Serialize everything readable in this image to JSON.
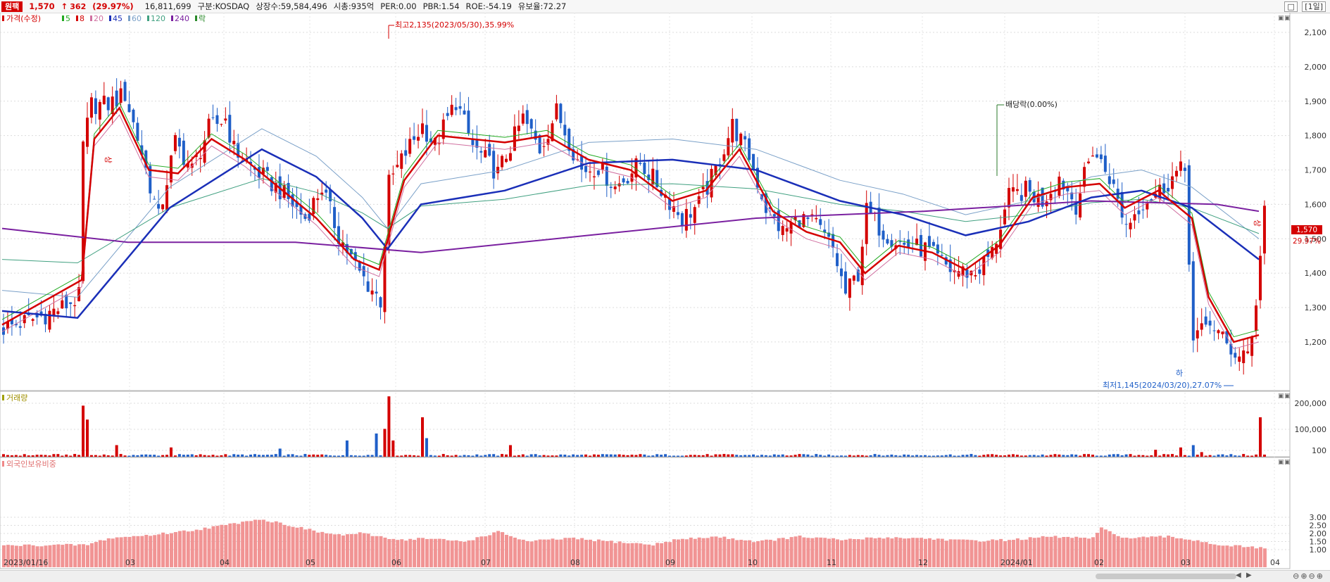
{
  "header": {
    "name": "원팩",
    "price": "1,570",
    "arrow": "↑",
    "change": "362",
    "change_pct": "(29.97%)",
    "volume": "16,811,699",
    "market": "구분:KOSDAQ",
    "listed": "상장수:59,584,496",
    "mcap": "시총:935억",
    "per": "PER:0.00",
    "pbr": "PBR:1.54",
    "roe": "ROE:-54.19",
    "float": "유보율:72.27",
    "period": "[1일]",
    "win_btn": "□"
  },
  "legend": {
    "price": "가격(수정)",
    "ma": [
      {
        "label": "5",
        "color": "#22aa22"
      },
      {
        "label": "8",
        "color": "#d40000"
      },
      {
        "label": "20",
        "color": "#d070a0"
      },
      {
        "label": "45",
        "color": "#1a2fb8"
      },
      {
        "label": "60",
        "color": "#7aa0c8"
      },
      {
        "label": "120",
        "color": "#40a080"
      },
      {
        "label": "240",
        "color": "#7a20a0"
      }
    ],
    "div": "락"
  },
  "annotations": {
    "high": "최고2,135(2023/05/30),35.99%",
    "low": "최저1,145(2024/03/20),27.07%",
    "dividend": "배당락(0.00%)",
    "up_mark": "상",
    "down_mark": "하",
    "last_price_tag": "1,570",
    "last_pct_tag": "29.97%"
  },
  "colors": {
    "up": "#d40000",
    "down": "#1f5fc8",
    "foreign": "#f08888"
  },
  "chart_data": [
    {
      "type": "candlestick",
      "title": "가격(수정)",
      "y_ticks": [
        1200,
        1300,
        1400,
        1500,
        1600,
        1700,
        1800,
        1900,
        2000,
        2100
      ],
      "ylim": [
        1120,
        2200
      ],
      "x_tick_labels": [
        "2023/01/16",
        "03",
        "04",
        "05",
        "06",
        "07",
        "08",
        "09",
        "10",
        "11",
        "12",
        "2024/01",
        "02",
        "03",
        "04"
      ],
      "summary_path_close": [
        [
          0,
          1240
        ],
        [
          8,
          1270
        ],
        [
          14,
          1300
        ],
        [
          18,
          1330
        ],
        [
          19,
          1770
        ],
        [
          21,
          1890
        ],
        [
          25,
          1890
        ],
        [
          29,
          1920
        ],
        [
          33,
          1750
        ],
        [
          37,
          1560
        ],
        [
          41,
          1780
        ],
        [
          45,
          1700
        ],
        [
          49,
          1820
        ],
        [
          53,
          1850
        ],
        [
          55,
          1760
        ],
        [
          60,
          1700
        ],
        [
          66,
          1640
        ],
        [
          72,
          1560
        ],
        [
          76,
          1650
        ],
        [
          80,
          1510
        ],
        [
          85,
          1400
        ],
        [
          90,
          1320
        ],
        [
          92,
          1660
        ],
        [
          96,
          1750
        ],
        [
          100,
          1830
        ],
        [
          103,
          1770
        ],
        [
          108,
          1900
        ],
        [
          112,
          1770
        ],
        [
          118,
          1690
        ],
        [
          124,
          1850
        ],
        [
          128,
          1760
        ],
        [
          132,
          1870
        ],
        [
          138,
          1700
        ],
        [
          142,
          1710
        ],
        [
          146,
          1650
        ],
        [
          152,
          1720
        ],
        [
          156,
          1660
        ],
        [
          162,
          1560
        ],
        [
          166,
          1600
        ],
        [
          170,
          1700
        ],
        [
          174,
          1830
        ],
        [
          178,
          1740
        ],
        [
          182,
          1590
        ],
        [
          186,
          1520
        ],
        [
          190,
          1560
        ],
        [
          194,
          1540
        ],
        [
          198,
          1470
        ],
        [
          201,
          1340
        ],
        [
          204,
          1400
        ],
        [
          206,
          1580
        ],
        [
          210,
          1520
        ],
        [
          215,
          1480
        ],
        [
          220,
          1470
        ],
        [
          226,
          1410
        ],
        [
          232,
          1400
        ],
        [
          236,
          1460
        ],
        [
          240,
          1620
        ],
        [
          244,
          1640
        ],
        [
          248,
          1610
        ],
        [
          252,
          1680
        ],
        [
          256,
          1600
        ],
        [
          260,
          1760
        ],
        [
          264,
          1680
        ],
        [
          268,
          1540
        ],
        [
          272,
          1610
        ],
        [
          276,
          1640
        ],
        [
          280,
          1690
        ],
        [
          282,
          1700
        ],
        [
          284,
          1200
        ],
        [
          288,
          1260
        ],
        [
          292,
          1190
        ],
        [
          295,
          1160
        ],
        [
          298,
          1200
        ],
        [
          301,
          1570
        ]
      ],
      "ma_8_path": [
        [
          0,
          1250
        ],
        [
          19,
          1380
        ],
        [
          22,
          1790
        ],
        [
          28,
          1880
        ],
        [
          35,
          1700
        ],
        [
          42,
          1690
        ],
        [
          50,
          1790
        ],
        [
          58,
          1730
        ],
        [
          66,
          1650
        ],
        [
          75,
          1560
        ],
        [
          84,
          1440
        ],
        [
          90,
          1410
        ],
        [
          96,
          1670
        ],
        [
          104,
          1800
        ],
        [
          112,
          1790
        ],
        [
          120,
          1780
        ],
        [
          130,
          1800
        ],
        [
          140,
          1730
        ],
        [
          150,
          1700
        ],
        [
          160,
          1610
        ],
        [
          168,
          1640
        ],
        [
          176,
          1760
        ],
        [
          184,
          1580
        ],
        [
          192,
          1520
        ],
        [
          200,
          1490
        ],
        [
          206,
          1400
        ],
        [
          214,
          1480
        ],
        [
          222,
          1460
        ],
        [
          230,
          1410
        ],
        [
          238,
          1480
        ],
        [
          246,
          1620
        ],
        [
          254,
          1650
        ],
        [
          262,
          1660
        ],
        [
          268,
          1590
        ],
        [
          276,
          1640
        ],
        [
          284,
          1560
        ],
        [
          288,
          1330
        ],
        [
          294,
          1200
        ],
        [
          300,
          1220
        ]
      ],
      "ma_45_path": [
        [
          0,
          1290
        ],
        [
          18,
          1270
        ],
        [
          40,
          1590
        ],
        [
          62,
          1760
        ],
        [
          75,
          1680
        ],
        [
          86,
          1560
        ],
        [
          92,
          1470
        ],
        [
          100,
          1600
        ],
        [
          120,
          1640
        ],
        [
          140,
          1720
        ],
        [
          160,
          1730
        ],
        [
          180,
          1700
        ],
        [
          200,
          1610
        ],
        [
          215,
          1570
        ],
        [
          230,
          1510
        ],
        [
          245,
          1550
        ],
        [
          260,
          1620
        ],
        [
          272,
          1640
        ],
        [
          284,
          1590
        ],
        [
          300,
          1440
        ]
      ],
      "ma_240_path": [
        [
          0,
          1530
        ],
        [
          30,
          1490
        ],
        [
          70,
          1490
        ],
        [
          100,
          1460
        ],
        [
          140,
          1510
        ],
        [
          180,
          1560
        ],
        [
          220,
          1580
        ],
        [
          260,
          1610
        ],
        [
          290,
          1600
        ],
        [
          300,
          1580
        ]
      ]
    },
    {
      "type": "bar",
      "title": "거래량",
      "y_ticks": [
        "100",
        "100,000",
        "200,000"
      ],
      "series": [
        {
          "name": "거래량"
        }
      ],
      "spikes": [
        [
          19,
          220000
        ],
        [
          20,
          160000
        ],
        [
          27,
          50000
        ],
        [
          40,
          40000
        ],
        [
          66,
          35000
        ],
        [
          82,
          70000
        ],
        [
          91,
          120000
        ],
        [
          93,
          70000
        ],
        [
          89,
          100000
        ],
        [
          92,
          260000
        ],
        [
          101,
          80000
        ],
        [
          100,
          170000
        ],
        [
          121,
          50000
        ],
        [
          284,
          50000
        ],
        [
          300,
          170000
        ],
        [
          275,
          30000
        ],
        [
          281,
          40000
        ],
        [
          286,
          20000
        ]
      ]
    },
    {
      "type": "bar",
      "title": "외국인보유비중",
      "y_ticks": [
        "1.00",
        "1.50",
        "2.00",
        "2.50",
        "3.00"
      ],
      "series": [
        {
          "name": "외국인보유비중"
        }
      ],
      "path": [
        [
          0,
          1.25
        ],
        [
          20,
          1.3
        ],
        [
          25,
          1.7
        ],
        [
          35,
          1.9
        ],
        [
          45,
          2.2
        ],
        [
          55,
          2.6
        ],
        [
          60,
          2.9
        ],
        [
          65,
          2.7
        ],
        [
          75,
          2.1
        ],
        [
          80,
          1.9
        ],
        [
          85,
          2.0
        ],
        [
          95,
          1.6
        ],
        [
          100,
          1.7
        ],
        [
          110,
          1.5
        ],
        [
          118,
          2.1
        ],
        [
          125,
          1.5
        ],
        [
          135,
          1.7
        ],
        [
          145,
          1.5
        ],
        [
          155,
          1.3
        ],
        [
          160,
          1.6
        ],
        [
          170,
          1.8
        ],
        [
          180,
          1.5
        ],
        [
          190,
          1.8
        ],
        [
          200,
          1.6
        ],
        [
          210,
          1.75
        ],
        [
          220,
          1.7
        ],
        [
          230,
          1.55
        ],
        [
          240,
          1.6
        ],
        [
          250,
          1.8
        ],
        [
          260,
          1.7
        ],
        [
          262,
          2.3
        ],
        [
          268,
          1.7
        ],
        [
          278,
          1.8
        ],
        [
          284,
          1.6
        ],
        [
          290,
          1.3
        ],
        [
          300,
          1.1
        ]
      ]
    }
  ]
}
